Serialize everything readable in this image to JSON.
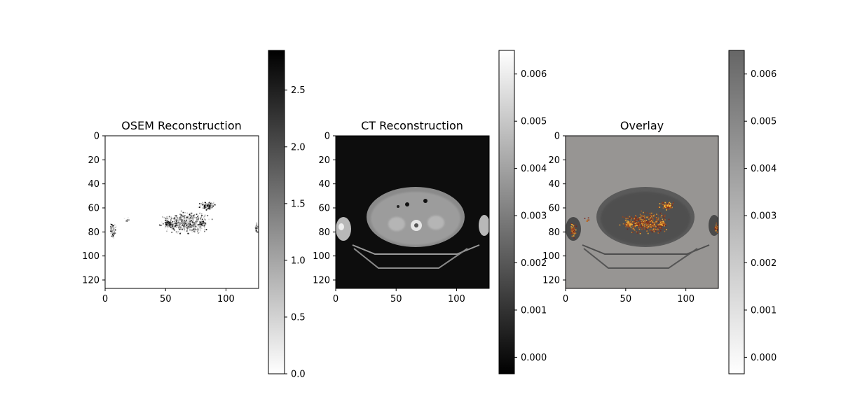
{
  "chart_data": [
    {
      "type": "heatmap",
      "title": "OSEM Reconstruction",
      "cmap": "grayscale, white (0.0) to black (max)",
      "xlim": [
        0,
        127
      ],
      "ylim": [
        127,
        0
      ],
      "x_ticks": [
        0,
        50,
        100
      ],
      "y_ticks": [
        0,
        20,
        40,
        60,
        80,
        100,
        120
      ],
      "colorbar": {
        "range": [
          0.0,
          2.85
        ],
        "ticks": [
          0.0,
          0.5,
          1.0,
          1.5,
          2.0,
          2.5
        ],
        "tick_labels": [
          "0.0",
          "0.5",
          "1.0",
          "1.5",
          "2.0",
          "2.5"
        ]
      }
    },
    {
      "type": "heatmap",
      "title": "CT Reconstruction",
      "cmap": "grayscale, black (low) to white (high)",
      "xlim": [
        0,
        127
      ],
      "ylim": [
        127,
        0
      ],
      "x_ticks": [
        0,
        50,
        100
      ],
      "y_ticks": [
        0,
        20,
        40,
        60,
        80,
        100,
        120
      ],
      "colorbar": {
        "range": [
          -0.00035,
          0.0065
        ],
        "ticks": [
          0.0,
          0.001,
          0.002,
          0.003,
          0.004,
          0.005,
          0.006
        ],
        "tick_labels": [
          "0.000",
          "0.001",
          "0.002",
          "0.003",
          "0.004",
          "0.005",
          "0.006"
        ]
      }
    },
    {
      "type": "heatmap",
      "title": "Overlay",
      "cmap": "semi-transparent grayscale CT with hot-colored OSEM overlay",
      "xlim": [
        0,
        127
      ],
      "ylim": [
        127,
        0
      ],
      "x_ticks": [
        0,
        50,
        100
      ],
      "y_ticks": [
        0,
        20,
        40,
        60,
        80,
        100,
        120
      ],
      "colorbar": {
        "range": [
          -0.00035,
          0.0065
        ],
        "ticks": [
          0.0,
          0.001,
          0.002,
          0.003,
          0.004,
          0.005,
          0.006
        ],
        "tick_labels": [
          "0.000",
          "0.001",
          "0.002",
          "0.003",
          "0.004",
          "0.005",
          "0.006"
        ]
      }
    }
  ]
}
